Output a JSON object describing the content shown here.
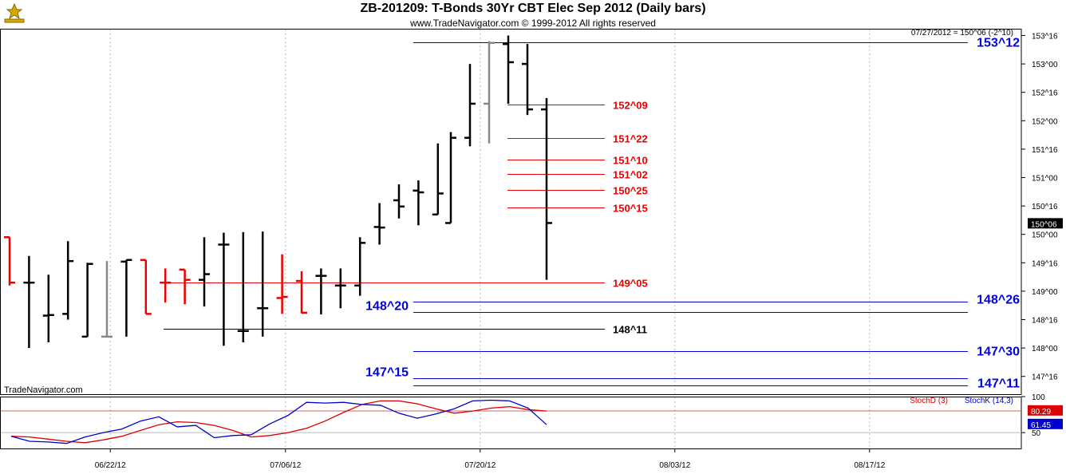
{
  "header": {
    "title": "ZB-201209:  T-Bonds 30Yr CBT Elec Sep 2012  (Daily bars)",
    "copyright": "www.TradeNavigator.com © 1999-2012 All rights reserved",
    "watermark": "TradeNavigator.com",
    "last_readout": "07/27/2012 = 150^06 (-2^10)",
    "last_price_tag": "150^06"
  },
  "colors": {
    "up_bar": "#000000",
    "down_bar": "#ee0000",
    "neutral_bar": "#888888",
    "red_level": "#ee0000",
    "blue_level": "#0000dd",
    "black_level": "#000000",
    "stochD": "#dd0000",
    "stochK": "#0000cc",
    "grid": "#bbbbbb"
  },
  "chart_data": [
    {
      "type": "bar",
      "subtype": "ohlc",
      "title": "ZB-201209:  T-Bonds 30Yr CBT Elec Sep 2012  (Daily bars)",
      "price_unit": "points (1/32 ticks shown as ^)",
      "ylim": [
        146.9,
        153.3
      ],
      "y_ticks": [
        147.5,
        148.0,
        148.5,
        149.0,
        149.5,
        150.0,
        150.5,
        151.0,
        151.5,
        152.0,
        152.5,
        153.0,
        153.5
      ],
      "y_tick_labels": [
        "147^16",
        "148^00",
        "148^16",
        "149^00",
        "149^16",
        "150^00",
        "150^16",
        "151^00",
        "151^16",
        "152^00",
        "152^16",
        "153^00",
        "153^16"
      ],
      "x_tick_labels": [
        "06/22/12",
        "07/06/12",
        "07/20/12",
        "08/03/12",
        "08/17/12"
      ],
      "x_tick_index": [
        3,
        12,
        22,
        32,
        42
      ],
      "grid": true,
      "bars": [
        {
          "o": 149.95,
          "h": 149.95,
          "l": 149.1,
          "c": 149.15,
          "color": "down"
        },
        {
          "o": 149.15,
          "h": 149.62,
          "l": 148.0,
          "c": 149.15,
          "color": "up"
        },
        {
          "o": 148.57,
          "h": 149.29,
          "l": 148.1,
          "c": 148.58,
          "color": "up"
        },
        {
          "o": 148.6,
          "h": 149.88,
          "l": 148.5,
          "c": 149.53,
          "color": "up"
        },
        {
          "o": 148.2,
          "h": 149.5,
          "l": 148.2,
          "c": 149.48,
          "color": "up"
        },
        {
          "o": 148.2,
          "h": 149.53,
          "l": 148.2,
          "c": 148.2,
          "color": "neutral"
        },
        {
          "o": 149.52,
          "h": 149.55,
          "l": 148.2,
          "c": 149.55,
          "color": "up"
        },
        {
          "o": 149.55,
          "h": 149.55,
          "l": 148.6,
          "c": 148.6,
          "color": "down"
        },
        {
          "o": 149.15,
          "h": 149.4,
          "l": 148.8,
          "c": 149.15,
          "color": "down"
        },
        {
          "o": 149.38,
          "h": 149.38,
          "l": 148.77,
          "c": 149.2,
          "color": "down"
        },
        {
          "o": 149.2,
          "h": 149.95,
          "l": 148.73,
          "c": 149.3,
          "color": "up"
        },
        {
          "o": 149.82,
          "h": 150.03,
          "l": 148.04,
          "c": 149.82,
          "color": "up"
        },
        {
          "o": 148.3,
          "h": 150.04,
          "l": 148.1,
          "c": 148.3,
          "color": "up"
        },
        {
          "o": 148.7,
          "h": 150.05,
          "l": 148.2,
          "c": 148.7,
          "color": "up"
        },
        {
          "o": 148.88,
          "h": 149.65,
          "l": 148.6,
          "c": 148.9,
          "color": "down"
        },
        {
          "o": 149.18,
          "h": 149.35,
          "l": 148.61,
          "c": 148.62,
          "color": "down"
        },
        {
          "o": 149.27,
          "h": 149.4,
          "l": 148.59,
          "c": 149.27,
          "color": "up"
        },
        {
          "o": 149.1,
          "h": 149.4,
          "l": 148.7,
          "c": 149.1,
          "color": "up"
        },
        {
          "o": 149.1,
          "h": 149.95,
          "l": 148.92,
          "c": 149.85,
          "color": "up"
        },
        {
          "o": 150.13,
          "h": 150.55,
          "l": 149.82,
          "c": 150.12,
          "color": "up"
        },
        {
          "o": 150.6,
          "h": 150.88,
          "l": 150.28,
          "c": 150.49,
          "color": "up"
        },
        {
          "o": 150.77,
          "h": 150.95,
          "l": 150.16,
          "c": 150.74,
          "color": "up"
        },
        {
          "o": 150.35,
          "h": 151.6,
          "l": 150.35,
          "c": 150.72,
          "color": "up"
        }
      ]
    },
    {
      "type": "line",
      "title": "",
      "ylim": [
        28,
        100
      ],
      "y_ticks": [
        50,
        100
      ],
      "series": [
        {
          "name": "StochD (3)",
          "last": "80.29",
          "values": [
            45,
            44,
            41,
            38,
            36,
            40,
            45,
            53,
            61,
            65,
            64,
            60,
            53,
            44,
            46,
            50,
            56,
            66,
            78,
            89,
            94,
            94,
            90,
            83,
            77,
            80,
            84,
            86,
            82,
            80
          ]
        },
        {
          "name": "StochK (14,3)",
          "last": "61.45",
          "values": [
            45,
            38,
            37,
            35,
            44,
            50,
            55,
            66,
            72,
            58,
            60,
            43,
            46,
            47,
            62,
            74,
            92,
            91,
            92,
            89,
            88,
            77,
            70,
            76,
            83,
            94,
            95,
            94,
            84,
            61
          ]
        }
      ]
    }
  ],
  "levels": [
    {
      "label": "153^12",
      "price": 153.375,
      "color": "blue"
    },
    {
      "label": "152^09",
      "price": 152.28,
      "color": "red"
    },
    {
      "label": "151^22",
      "price": 151.69,
      "color": "red"
    },
    {
      "label": "151^10",
      "price": 151.31,
      "color": "red"
    },
    {
      "label": "151^02",
      "price": 151.06,
      "color": "red"
    },
    {
      "label": "150^25",
      "price": 150.78,
      "color": "red"
    },
    {
      "label": "150^15",
      "price": 150.47,
      "color": "red"
    },
    {
      "label": "149^05",
      "price": 149.16,
      "color": "red"
    },
    {
      "label": "148^26",
      "price": 148.81,
      "color": "blue"
    },
    {
      "label": "148^20",
      "price": 148.63,
      "color": "blue"
    },
    {
      "label": "148^11",
      "price": 148.34,
      "color": "black"
    },
    {
      "label": "147^30",
      "price": 147.94,
      "color": "blue"
    },
    {
      "label": "147^15",
      "price": 147.47,
      "color": "blue"
    },
    {
      "label": "147^11",
      "price": 147.34,
      "color": "blue"
    }
  ]
}
